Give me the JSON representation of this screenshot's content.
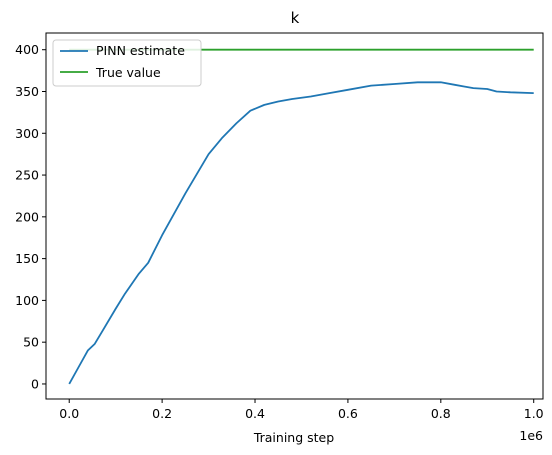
{
  "chart_data": {
    "type": "line",
    "title": "k",
    "xlabel": "Training step",
    "ylabel": "",
    "x_offset_label": "1e6",
    "xlim": [
      -0.05,
      1.02
    ],
    "ylim": [
      -18,
      420
    ],
    "x_ticks": [
      0.0,
      0.2,
      0.4,
      0.6,
      0.8,
      1.0
    ],
    "x_tick_labels": [
      "0.0",
      "0.2",
      "0.4",
      "0.6",
      "0.8",
      "1.0"
    ],
    "y_ticks": [
      0,
      50,
      100,
      150,
      200,
      250,
      300,
      350,
      400
    ],
    "y_tick_labels": [
      "0",
      "50",
      "100",
      "150",
      "200",
      "250",
      "300",
      "350",
      "400"
    ],
    "legend_position": "upper-left",
    "series": [
      {
        "name": "PINN estimate",
        "color": "#1f77b4",
        "x": [
          0.0,
          0.02,
          0.04,
          0.055,
          0.07,
          0.1,
          0.12,
          0.15,
          0.17,
          0.2,
          0.25,
          0.3,
          0.33,
          0.36,
          0.39,
          0.42,
          0.45,
          0.48,
          0.52,
          0.56,
          0.6,
          0.65,
          0.7,
          0.75,
          0.8,
          0.83,
          0.85,
          0.87,
          0.9,
          0.92,
          0.95,
          1.0
        ],
        "y": [
          0,
          20,
          40,
          48,
          62,
          90,
          108,
          132,
          145,
          178,
          228,
          275,
          295,
          312,
          327,
          334,
          338,
          341,
          344,
          348,
          352,
          357,
          359,
          361,
          361,
          358,
          356,
          354,
          353,
          350,
          349,
          348
        ]
      },
      {
        "name": "True value",
        "color": "#2ca02c",
        "x": [
          0.0,
          1.0
        ],
        "y": [
          400,
          400
        ]
      }
    ]
  }
}
